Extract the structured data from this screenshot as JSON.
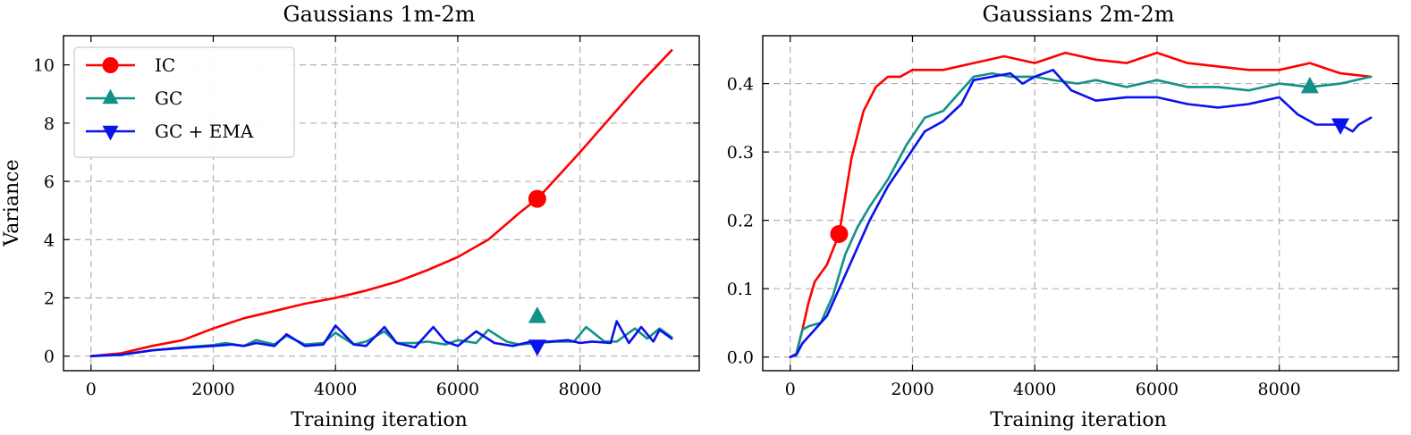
{
  "chart_data": [
    {
      "type": "line",
      "title": "Gaussians 1m-2m",
      "xlabel": "Training iteration",
      "ylabel": "Variance",
      "xlim": [
        -450,
        9950
      ],
      "ylim": [
        -0.5,
        11.0
      ],
      "xticks": [
        0,
        2000,
        4000,
        6000,
        8000
      ],
      "xtick_labels": [
        "0",
        "2000",
        "4000",
        "6000",
        "8000"
      ],
      "yticks": [
        0,
        2,
        4,
        6,
        8,
        10
      ],
      "ytick_labels": [
        "0",
        "2",
        "4",
        "6",
        "8",
        "10"
      ],
      "grid": true,
      "legend": "top-left",
      "series": [
        {
          "name": "IC",
          "color": "#ff0000",
          "marker": "circle",
          "marker_at": [
            7300,
            5.4
          ],
          "x": [
            0,
            500,
            1000,
            1500,
            2000,
            2500,
            3000,
            3500,
            4000,
            4500,
            5000,
            5500,
            6000,
            6500,
            7000,
            7300,
            7500,
            8000,
            8500,
            9000,
            9500
          ],
          "y": [
            0,
            0.1,
            0.35,
            0.55,
            0.95,
            1.3,
            1.55,
            1.8,
            2.0,
            2.25,
            2.55,
            2.95,
            3.4,
            4.0,
            4.9,
            5.4,
            5.85,
            7.0,
            8.2,
            9.4,
            10.5
          ]
        },
        {
          "name": "GC",
          "color": "#119188",
          "marker": "triangle-up",
          "marker_at": [
            7300,
            1.35
          ],
          "x": [
            0,
            500,
            1000,
            1500,
            2000,
            2200,
            2500,
            2700,
            3000,
            3200,
            3500,
            3800,
            4000,
            4300,
            4500,
            4800,
            5000,
            5300,
            5500,
            5800,
            6000,
            6300,
            6500,
            6800,
            7000,
            7300,
            7600,
            7900,
            8100,
            8400,
            8600,
            8900,
            9100,
            9300,
            9500
          ],
          "y": [
            0,
            0.05,
            0.2,
            0.3,
            0.38,
            0.45,
            0.35,
            0.55,
            0.4,
            0.7,
            0.4,
            0.45,
            0.8,
            0.4,
            0.5,
            0.85,
            0.45,
            0.45,
            0.5,
            0.4,
            0.55,
            0.45,
            0.9,
            0.5,
            0.4,
            0.45,
            0.5,
            0.5,
            1.0,
            0.5,
            0.5,
            0.95,
            0.6,
            0.95,
            0.65
          ]
        },
        {
          "name": "GC + EMA",
          "color": "#0a10ee",
          "marker": "triangle-down",
          "marker_at": [
            7300,
            0.35
          ],
          "x": [
            0,
            500,
            1000,
            1500,
            2000,
            2300,
            2500,
            2700,
            3000,
            3200,
            3500,
            3800,
            4000,
            4300,
            4500,
            4800,
            5000,
            5300,
            5600,
            5800,
            6000,
            6300,
            6600,
            6900,
            7200,
            7500,
            7800,
            8000,
            8200,
            8500,
            8600,
            8800,
            9000,
            9200,
            9300,
            9500
          ],
          "y": [
            0,
            0.05,
            0.2,
            0.28,
            0.35,
            0.4,
            0.35,
            0.45,
            0.35,
            0.75,
            0.35,
            0.4,
            1.05,
            0.4,
            0.35,
            1.0,
            0.45,
            0.3,
            1.0,
            0.5,
            0.35,
            0.85,
            0.45,
            0.35,
            0.5,
            0.5,
            0.55,
            0.45,
            0.5,
            0.45,
            1.2,
            0.45,
            1.0,
            0.5,
            0.9,
            0.6
          ]
        }
      ]
    },
    {
      "type": "line",
      "title": "Gaussians 2m-2m",
      "xlabel": "Training iteration",
      "ylabel": "",
      "xlim": [
        -450,
        9950
      ],
      "ylim": [
        -0.02,
        0.47
      ],
      "xticks": [
        0,
        2000,
        4000,
        6000,
        8000
      ],
      "xtick_labels": [
        "0",
        "2000",
        "4000",
        "6000",
        "8000"
      ],
      "yticks": [
        0.0,
        0.1,
        0.2,
        0.3,
        0.4
      ],
      "ytick_labels": [
        "0.0",
        "0.1",
        "0.2",
        "0.3",
        "0.4"
      ],
      "grid": true,
      "series": [
        {
          "name": "IC",
          "color": "#ff0000",
          "marker": "circle",
          "marker_at": [
            800,
            0.18
          ],
          "x": [
            0,
            100,
            200,
            300,
            400,
            600,
            800,
            1000,
            1200,
            1400,
            1600,
            1800,
            2000,
            2500,
            3000,
            3500,
            4000,
            4500,
            5000,
            5500,
            6000,
            6500,
            7000,
            7500,
            8000,
            8500,
            9000,
            9500
          ],
          "y": [
            0,
            0.005,
            0.04,
            0.08,
            0.11,
            0.135,
            0.18,
            0.29,
            0.36,
            0.395,
            0.41,
            0.41,
            0.42,
            0.42,
            0.43,
            0.44,
            0.43,
            0.445,
            0.435,
            0.43,
            0.445,
            0.43,
            0.425,
            0.42,
            0.42,
            0.43,
            0.415,
            0.41
          ]
        },
        {
          "name": "GC",
          "color": "#119188",
          "marker": "triangle-up",
          "marker_at": [
            8500,
            0.395
          ],
          "x": [
            0,
            100,
            200,
            300,
            500,
            700,
            900,
            1100,
            1300,
            1600,
            1900,
            2200,
            2500,
            2800,
            3000,
            3300,
            3600,
            4000,
            4300,
            4700,
            5000,
            5500,
            6000,
            6500,
            7000,
            7500,
            8000,
            8500,
            9000,
            9500
          ],
          "y": [
            0,
            0.005,
            0.04,
            0.045,
            0.05,
            0.09,
            0.15,
            0.19,
            0.22,
            0.26,
            0.31,
            0.35,
            0.36,
            0.39,
            0.41,
            0.415,
            0.41,
            0.41,
            0.405,
            0.4,
            0.405,
            0.395,
            0.405,
            0.395,
            0.395,
            0.39,
            0.4,
            0.395,
            0.4,
            0.41
          ]
        },
        {
          "name": "GC + EMA",
          "color": "#0a10ee",
          "marker": "triangle-down",
          "marker_at": [
            9000,
            0.34
          ],
          "x": [
            0,
            100,
            200,
            400,
            600,
            800,
            1000,
            1300,
            1600,
            1900,
            2200,
            2500,
            2800,
            3000,
            3300,
            3600,
            3800,
            4000,
            4300,
            4600,
            5000,
            5500,
            6000,
            6500,
            7000,
            7500,
            8000,
            8300,
            8600,
            9000,
            9200,
            9300,
            9500
          ],
          "y": [
            0,
            0.003,
            0.02,
            0.04,
            0.06,
            0.1,
            0.14,
            0.2,
            0.25,
            0.29,
            0.33,
            0.345,
            0.37,
            0.405,
            0.41,
            0.415,
            0.4,
            0.41,
            0.42,
            0.39,
            0.375,
            0.38,
            0.38,
            0.37,
            0.365,
            0.37,
            0.38,
            0.355,
            0.34,
            0.34,
            0.33,
            0.34,
            0.35
          ]
        }
      ]
    }
  ]
}
